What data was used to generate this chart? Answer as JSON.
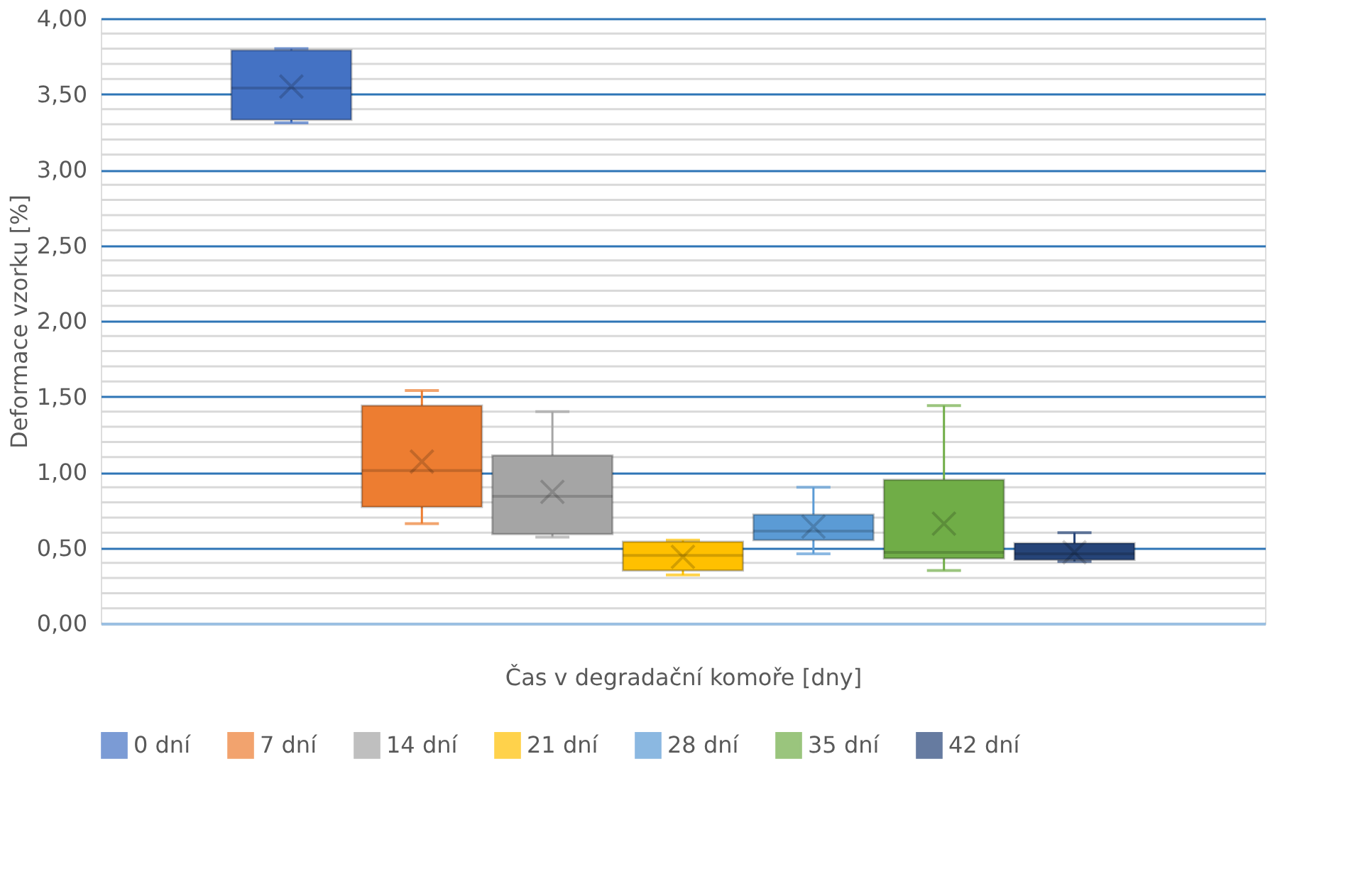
{
  "chart_data": {
    "type": "box",
    "categories": [
      null
    ],
    "xlabel": "Čas v degradační komoře [dny]",
    "ylabel": "Deformace vzorku [%]",
    "ylim": [
      0,
      4
    ],
    "yticks": [
      {
        "value": 0,
        "label": "0,00"
      },
      {
        "value": 0.5,
        "label": "0,50"
      },
      {
        "value": 1,
        "label": "1,00"
      },
      {
        "value": 1.5,
        "label": "1,50"
      },
      {
        "value": 2,
        "label": "2,00"
      },
      {
        "value": 2.5,
        "label": "2,50"
      },
      {
        "value": 3,
        "label": "3,00"
      },
      {
        "value": 3.5,
        "label": "3,50"
      },
      {
        "value": 4,
        "label": "4,00"
      }
    ],
    "grid": true,
    "legend": "bottom",
    "series": [
      {
        "name": "0 dní",
        "color": "#4472c4",
        "boxes": [
          {
            "low": 3.31,
            "q1": 3.33,
            "median": 3.54,
            "q3": 3.79,
            "high": 3.8,
            "mean": 3.55
          }
        ]
      },
      {
        "name": "7 dní",
        "color": "#ed7d31",
        "boxes": [
          {
            "low": 0.66,
            "q1": 0.77,
            "median": 1.01,
            "q3": 1.44,
            "high": 1.54,
            "mean": 1.07
          }
        ]
      },
      {
        "name": "14 dní",
        "color": "#a5a5a5",
        "boxes": [
          {
            "low": 0.57,
            "q1": 0.59,
            "median": 0.84,
            "q3": 1.11,
            "high": 1.4,
            "mean": 0.87
          }
        ]
      },
      {
        "name": "21 dní",
        "color": "#ffc000",
        "boxes": [
          {
            "low": 0.32,
            "q1": 0.35,
            "median": 0.45,
            "q3": 0.54,
            "high": 0.55,
            "mean": 0.44
          }
        ]
      },
      {
        "name": "28 dní",
        "color": "#5b9bd5",
        "boxes": [
          {
            "low": 0.46,
            "q1": 0.55,
            "median": 0.61,
            "q3": 0.72,
            "high": 0.9,
            "mean": 0.64
          }
        ]
      },
      {
        "name": "35 dní",
        "color": "#70ad47",
        "boxes": [
          {
            "low": 0.35,
            "q1": 0.43,
            "median": 0.47,
            "q3": 0.95,
            "high": 1.44,
            "mean": 0.66
          }
        ]
      },
      {
        "name": "42 dní",
        "color": "#264478",
        "boxes": [
          {
            "low": 0.41,
            "q1": 0.42,
            "median": 0.46,
            "q3": 0.53,
            "high": 0.6,
            "mean": 0.47
          }
        ]
      }
    ]
  }
}
